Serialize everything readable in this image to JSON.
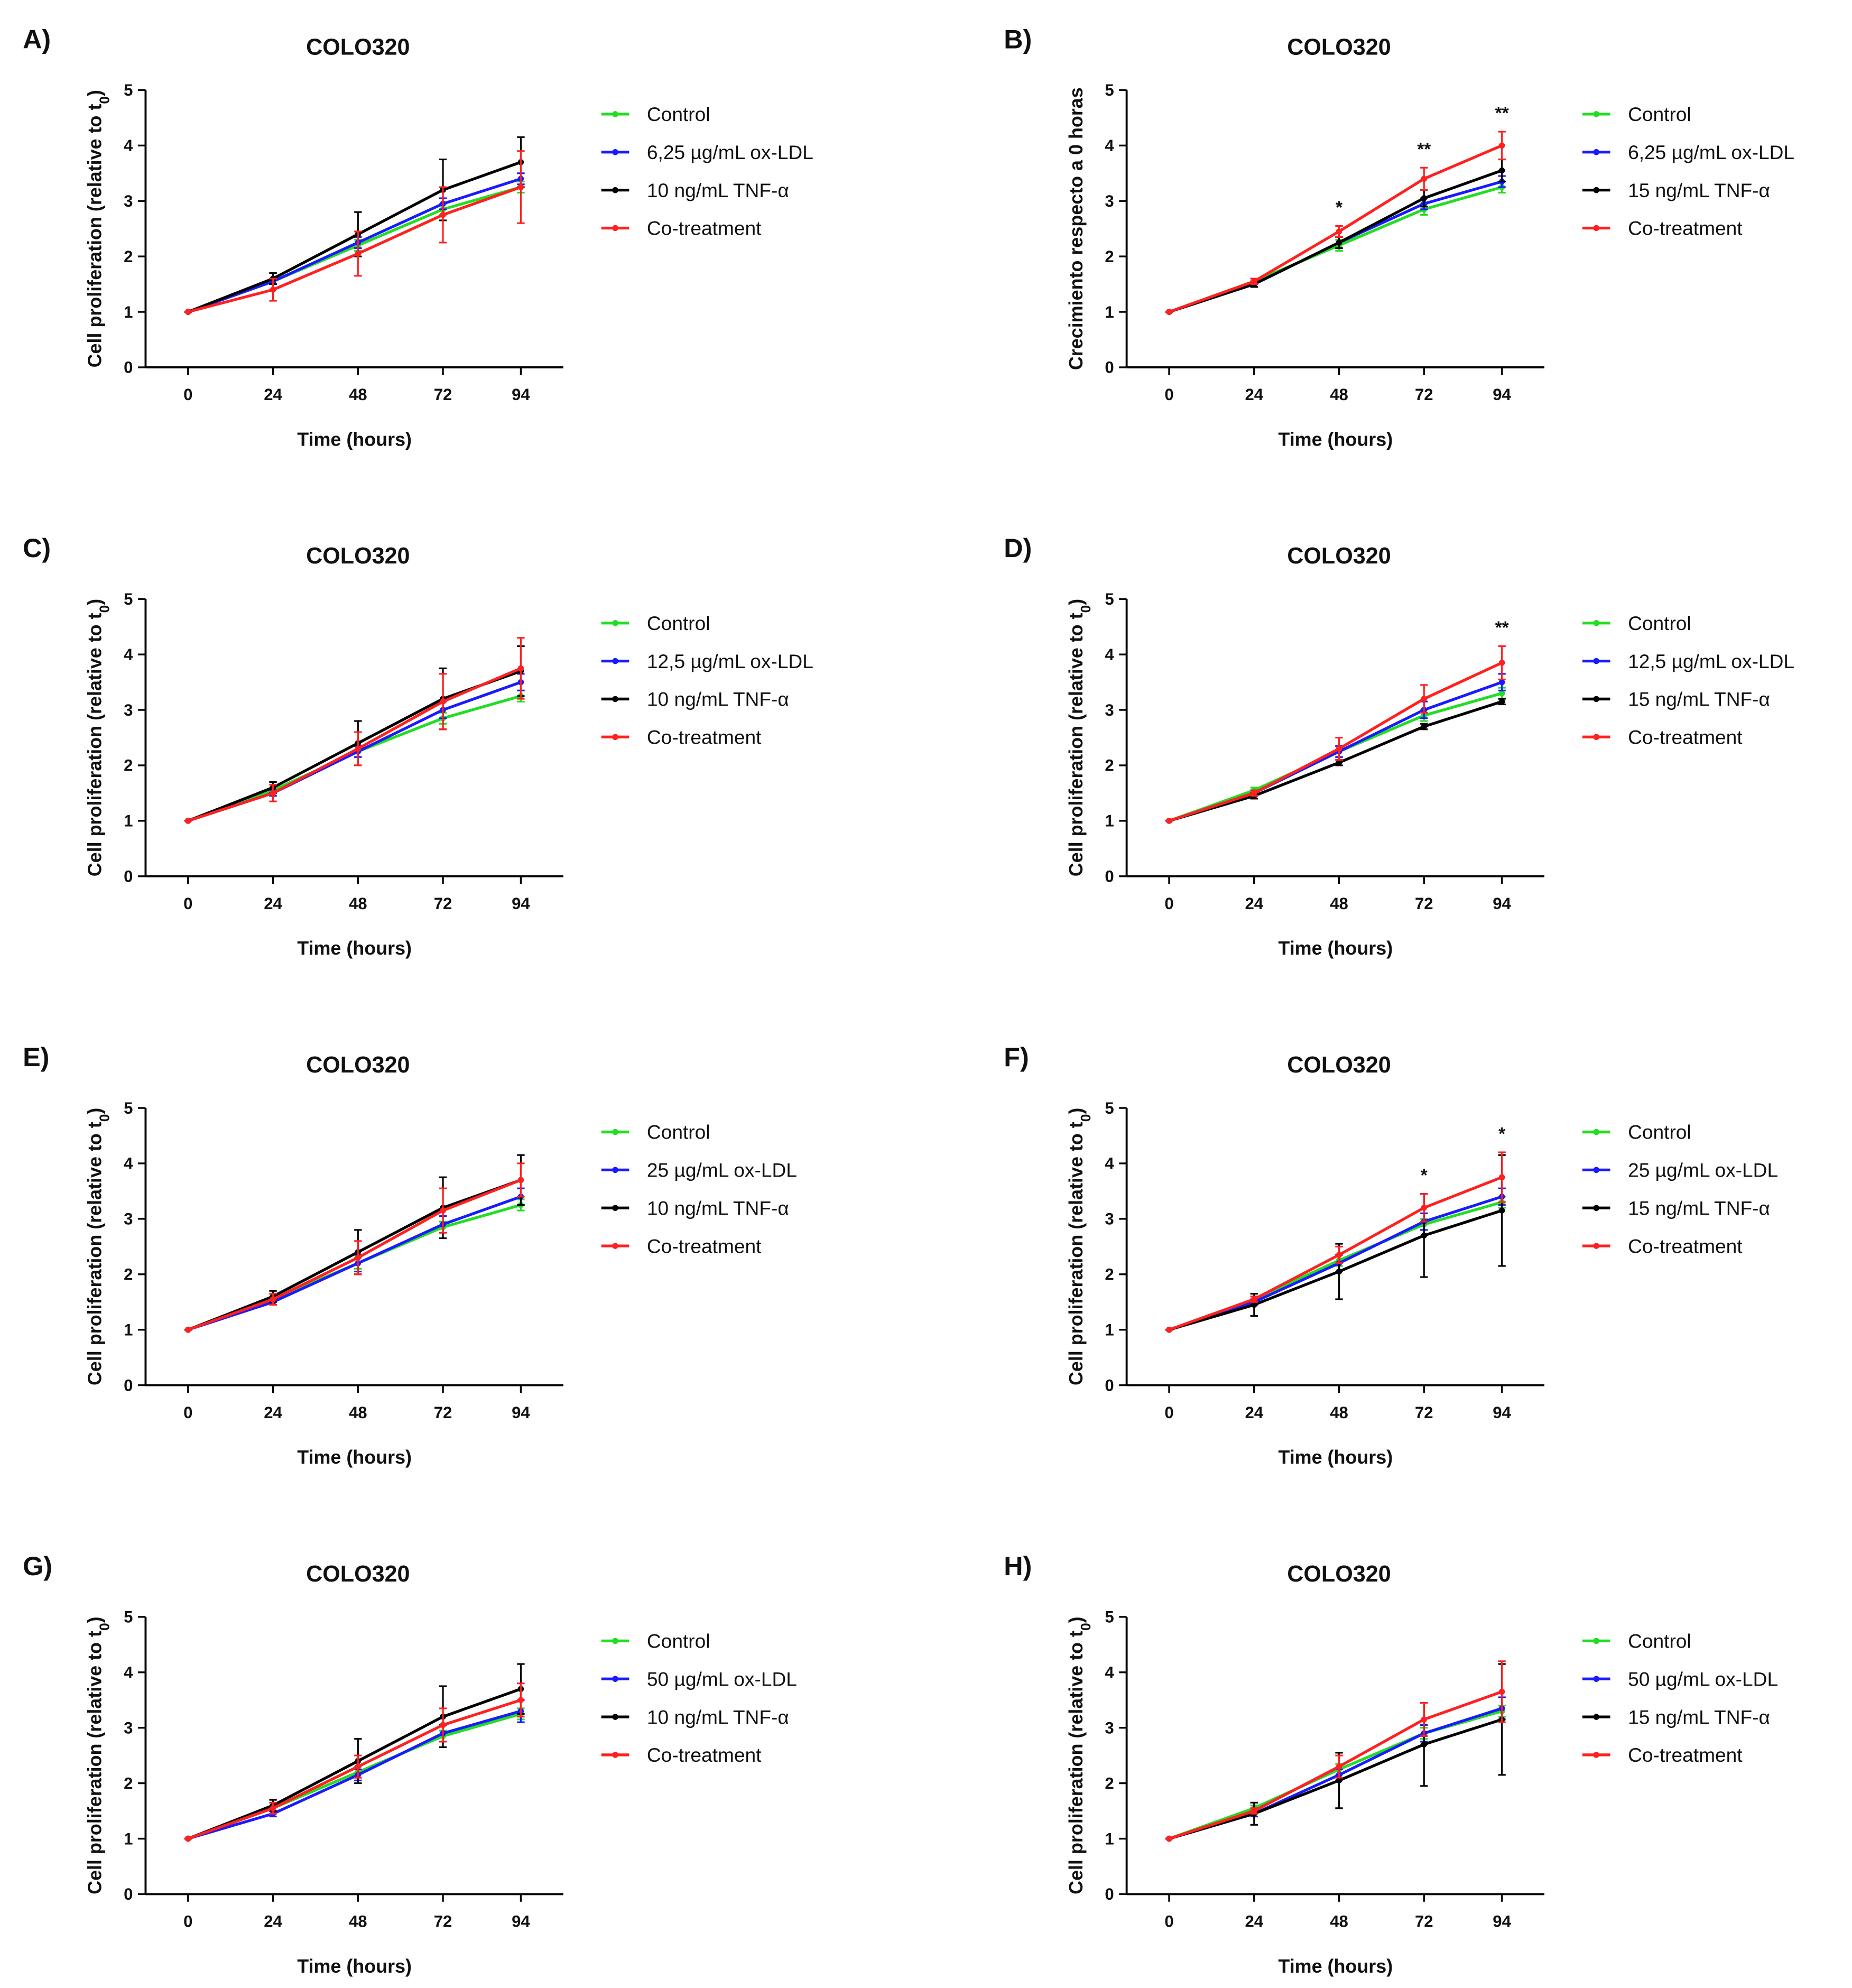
{
  "chart_data": [
    {
      "type": "line",
      "panel": "A)",
      "title": "COLO320",
      "xlabel": "Time (hours)",
      "ylabel": [
        "Cell proliferation (relative to t",
        "0",
        ")"
      ],
      "x": [
        0,
        24,
        48,
        72,
        94
      ],
      "xlim": [
        -12,
        106
      ],
      "xticks": [
        0,
        24,
        48,
        72,
        94
      ],
      "ylim": [
        0,
        5
      ],
      "yticks": [
        0,
        1,
        2,
        3,
        4,
        5
      ],
      "series": [
        {
          "name": "Control",
          "color": "#22dd22",
          "values": [
            1,
            1.55,
            2.2,
            2.85,
            3.25
          ],
          "errors": [
            0,
            0.05,
            0.1,
            0.1,
            0.1
          ]
        },
        {
          "name": "6,25 µg/mL ox-LDL",
          "color": "#1a1aff",
          "values": [
            1,
            1.55,
            2.25,
            2.95,
            3.4
          ],
          "errors": [
            0,
            0.05,
            0.1,
            0.1,
            0.1
          ]
        },
        {
          "name": "10 ng/mL TNF-α",
          "color": "#000000",
          "values": [
            1,
            1.6,
            2.4,
            3.2,
            3.7
          ],
          "errors": [
            0,
            0.1,
            0.4,
            0.55,
            0.45
          ]
        },
        {
          "name": "Co-treatment",
          "color": "#ff2020",
          "values": [
            1,
            1.4,
            2.05,
            2.75,
            3.25
          ],
          "errors": [
            0,
            0.2,
            0.4,
            0.5,
            0.65
          ]
        }
      ],
      "annotations": []
    },
    {
      "type": "line",
      "panel": "B)",
      "title": "COLO320",
      "xlabel": "Time (hours)",
      "ylabel": [
        "Crecimiento respecto a 0 horas"
      ],
      "x": [
        0,
        24,
        48,
        72,
        94
      ],
      "xlim": [
        -12,
        106
      ],
      "xticks": [
        0,
        24,
        48,
        72,
        94
      ],
      "ylim": [
        0,
        5
      ],
      "yticks": [
        0,
        1,
        2,
        3,
        4,
        5
      ],
      "series": [
        {
          "name": "Control",
          "color": "#22dd22",
          "values": [
            1,
            1.55,
            2.2,
            2.85,
            3.25
          ],
          "errors": [
            0,
            0.05,
            0.1,
            0.1,
            0.1
          ]
        },
        {
          "name": "6,25 µg/mL ox-LDL",
          "color": "#1a1aff",
          "values": [
            1,
            1.5,
            2.25,
            2.95,
            3.35
          ],
          "errors": [
            0,
            0.05,
            0.1,
            0.1,
            0.1
          ]
        },
        {
          "name": "15 ng/mL TNF-α",
          "color": "#000000",
          "values": [
            1,
            1.5,
            2.25,
            3.05,
            3.55
          ],
          "errors": [
            0,
            0.05,
            0.1,
            0.15,
            0.2
          ]
        },
        {
          "name": "Co-treatment",
          "color": "#ff2020",
          "values": [
            1,
            1.55,
            2.45,
            3.4,
            4.0
          ],
          "errors": [
            0,
            0.05,
            0.1,
            0.2,
            0.25
          ]
        }
      ],
      "annotations": [
        {
          "text": "*",
          "x": 48
        },
        {
          "text": "**",
          "x": 72
        },
        {
          "text": "**",
          "x": 94
        }
      ]
    },
    {
      "type": "line",
      "panel": "C)",
      "title": "COLO320",
      "xlabel": "Time (hours)",
      "ylabel": [
        "Cell proliferation (relative to t",
        "0",
        ")"
      ],
      "x": [
        0,
        24,
        48,
        72,
        94
      ],
      "xlim": [
        -12,
        106
      ],
      "xticks": [
        0,
        24,
        48,
        72,
        94
      ],
      "ylim": [
        0,
        5
      ],
      "yticks": [
        0,
        1,
        2,
        3,
        4,
        5
      ],
      "series": [
        {
          "name": "Control",
          "color": "#22dd22",
          "values": [
            1,
            1.55,
            2.25,
            2.85,
            3.25
          ],
          "errors": [
            0,
            0.05,
            0.1,
            0.1,
            0.1
          ]
        },
        {
          "name": "12,5 µg/mL ox-LDL",
          "color": "#1a1aff",
          "values": [
            1,
            1.5,
            2.25,
            3.0,
            3.5
          ],
          "errors": [
            0,
            0.05,
            0.1,
            0.15,
            0.15
          ]
        },
        {
          "name": "10 ng/mL TNF-α",
          "color": "#000000",
          "values": [
            1,
            1.6,
            2.4,
            3.2,
            3.7
          ],
          "errors": [
            0,
            0.1,
            0.4,
            0.55,
            0.45
          ]
        },
        {
          "name": "Co-treatment",
          "color": "#ff2020",
          "values": [
            1,
            1.5,
            2.3,
            3.15,
            3.75
          ],
          "errors": [
            0,
            0.15,
            0.3,
            0.5,
            0.55
          ]
        }
      ],
      "annotations": []
    },
    {
      "type": "line",
      "panel": "D)",
      "title": "COLO320",
      "xlabel": "Time (hours)",
      "ylabel": [
        "Cell proliferation (relative to t",
        "0",
        ")"
      ],
      "x": [
        0,
        24,
        48,
        72,
        94
      ],
      "xlim": [
        -12,
        106
      ],
      "xticks": [
        0,
        24,
        48,
        72,
        94
      ],
      "ylim": [
        0,
        5
      ],
      "yticks": [
        0,
        1,
        2,
        3,
        4,
        5
      ],
      "series": [
        {
          "name": "Control",
          "color": "#22dd22",
          "values": [
            1,
            1.55,
            2.25,
            2.9,
            3.3
          ],
          "errors": [
            0,
            0.05,
            0.1,
            0.1,
            0.1
          ]
        },
        {
          "name": "12,5 µg/mL ox-LDL",
          "color": "#1a1aff",
          "values": [
            1,
            1.5,
            2.25,
            3.0,
            3.5
          ],
          "errors": [
            0,
            0.05,
            0.1,
            0.15,
            0.15
          ]
        },
        {
          "name": "15 ng/mL TNF-α",
          "color": "#000000",
          "values": [
            1,
            1.45,
            2.05,
            2.7,
            3.15
          ],
          "errors": [
            0,
            0.05,
            0.05,
            0.05,
            0.05
          ]
        },
        {
          "name": "Co-treatment",
          "color": "#ff2020",
          "values": [
            1,
            1.5,
            2.3,
            3.2,
            3.85
          ],
          "errors": [
            0,
            0.05,
            0.2,
            0.25,
            0.3
          ]
        }
      ],
      "annotations": [
        {
          "text": "**",
          "x": 94
        }
      ]
    },
    {
      "type": "line",
      "panel": "E)",
      "title": "COLO320",
      "xlabel": "Time (hours)",
      "ylabel": [
        "Cell proliferation (relative to t",
        "0",
        ")"
      ],
      "x": [
        0,
        24,
        48,
        72,
        94
      ],
      "xlim": [
        -12,
        106
      ],
      "xticks": [
        0,
        24,
        48,
        72,
        94
      ],
      "ylim": [
        0,
        5
      ],
      "yticks": [
        0,
        1,
        2,
        3,
        4,
        5
      ],
      "series": [
        {
          "name": "Control",
          "color": "#22dd22",
          "values": [
            1,
            1.55,
            2.2,
            2.85,
            3.25
          ],
          "errors": [
            0,
            0.05,
            0.1,
            0.1,
            0.1
          ]
        },
        {
          "name": "25 µg/mL ox-LDL",
          "color": "#1a1aff",
          "values": [
            1,
            1.5,
            2.2,
            2.9,
            3.4
          ],
          "errors": [
            0,
            0.05,
            0.15,
            0.15,
            0.15
          ]
        },
        {
          "name": "10 ng/mL TNF-α",
          "color": "#000000",
          "values": [
            1,
            1.6,
            2.4,
            3.2,
            3.7
          ],
          "errors": [
            0,
            0.1,
            0.4,
            0.55,
            0.45
          ]
        },
        {
          "name": "Co-treatment",
          "color": "#ff2020",
          "values": [
            1,
            1.55,
            2.3,
            3.15,
            3.7
          ],
          "errors": [
            0,
            0.1,
            0.3,
            0.4,
            0.3
          ]
        }
      ],
      "annotations": []
    },
    {
      "type": "line",
      "panel": "F)",
      "title": "COLO320",
      "xlabel": "Time (hours)",
      "ylabel": [
        "Cell proliferation (relative to t",
        "0",
        ")"
      ],
      "x": [
        0,
        24,
        48,
        72,
        94
      ],
      "xlim": [
        -12,
        106
      ],
      "xticks": [
        0,
        24,
        48,
        72,
        94
      ],
      "ylim": [
        0,
        5
      ],
      "yticks": [
        0,
        1,
        2,
        3,
        4,
        5
      ],
      "series": [
        {
          "name": "Control",
          "color": "#22dd22",
          "values": [
            1,
            1.55,
            2.25,
            2.9,
            3.3
          ],
          "errors": [
            0,
            0.05,
            0.1,
            0.1,
            0.1
          ]
        },
        {
          "name": "25 µg/mL ox-LDL",
          "color": "#1a1aff",
          "values": [
            1,
            1.5,
            2.2,
            2.95,
            3.4
          ],
          "errors": [
            0,
            0.05,
            0.15,
            0.15,
            0.15
          ]
        },
        {
          "name": "15 ng/mL TNF-α",
          "color": "#000000",
          "values": [
            1,
            1.45,
            2.05,
            2.7,
            3.15
          ],
          "errors": [
            0,
            0.2,
            0.5,
            0.75,
            1.0
          ]
        },
        {
          "name": "Co-treatment",
          "color": "#ff2020",
          "values": [
            1,
            1.55,
            2.35,
            3.2,
            3.75
          ],
          "errors": [
            0,
            0.05,
            0.15,
            0.25,
            0.45
          ]
        }
      ],
      "annotations": [
        {
          "text": "*",
          "x": 72
        },
        {
          "text": "*",
          "x": 94
        }
      ]
    },
    {
      "type": "line",
      "panel": "G)",
      "title": "COLO320",
      "xlabel": "Time (hours)",
      "ylabel": [
        "Cell proliferation (relative to t",
        "0",
        ")"
      ],
      "x": [
        0,
        24,
        48,
        72,
        94
      ],
      "xlim": [
        -12,
        106
      ],
      "xticks": [
        0,
        24,
        48,
        72,
        94
      ],
      "ylim": [
        0,
        5
      ],
      "yticks": [
        0,
        1,
        2,
        3,
        4,
        5
      ],
      "series": [
        {
          "name": "Control",
          "color": "#22dd22",
          "values": [
            1,
            1.55,
            2.2,
            2.85,
            3.25
          ],
          "errors": [
            0,
            0.05,
            0.1,
            0.1,
            0.1
          ]
        },
        {
          "name": "50 µg/mL ox-LDL",
          "color": "#1a1aff",
          "values": [
            1,
            1.45,
            2.15,
            2.9,
            3.3
          ],
          "errors": [
            0,
            0.05,
            0.1,
            0.15,
            0.2
          ]
        },
        {
          "name": "10 ng/mL TNF-α",
          "color": "#000000",
          "values": [
            1,
            1.6,
            2.4,
            3.2,
            3.7
          ],
          "errors": [
            0,
            0.1,
            0.4,
            0.55,
            0.45
          ]
        },
        {
          "name": "Co-treatment",
          "color": "#ff2020",
          "values": [
            1,
            1.55,
            2.3,
            3.05,
            3.5
          ],
          "errors": [
            0,
            0.1,
            0.2,
            0.3,
            0.3
          ]
        }
      ],
      "annotations": []
    },
    {
      "type": "line",
      "panel": "H)",
      "title": "COLO320",
      "xlabel": "Time (hours)",
      "ylabel": [
        "Cell proliferation (relative to t",
        "0",
        ")"
      ],
      "x": [
        0,
        24,
        48,
        72,
        94
      ],
      "xlim": [
        -12,
        106
      ],
      "xticks": [
        0,
        24,
        48,
        72,
        94
      ],
      "ylim": [
        0,
        5
      ],
      "yticks": [
        0,
        1,
        2,
        3,
        4,
        5
      ],
      "series": [
        {
          "name": "Control",
          "color": "#22dd22",
          "values": [
            1,
            1.55,
            2.25,
            2.9,
            3.3
          ],
          "errors": [
            0,
            0.05,
            0.1,
            0.1,
            0.1
          ]
        },
        {
          "name": "50 µg/mL ox-LDL",
          "color": "#1a1aff",
          "values": [
            1,
            1.45,
            2.15,
            2.9,
            3.35
          ],
          "errors": [
            0,
            0.05,
            0.1,
            0.15,
            0.2
          ]
        },
        {
          "name": "15 ng/mL TNF-α",
          "color": "#000000",
          "values": [
            1,
            1.45,
            2.05,
            2.7,
            3.15
          ],
          "errors": [
            0,
            0.2,
            0.5,
            0.75,
            1.0
          ]
        },
        {
          "name": "Co-treatment",
          "color": "#ff2020",
          "values": [
            1,
            1.5,
            2.3,
            3.15,
            3.65
          ],
          "errors": [
            0,
            0.05,
            0.2,
            0.3,
            0.55
          ]
        }
      ],
      "annotations": []
    }
  ]
}
